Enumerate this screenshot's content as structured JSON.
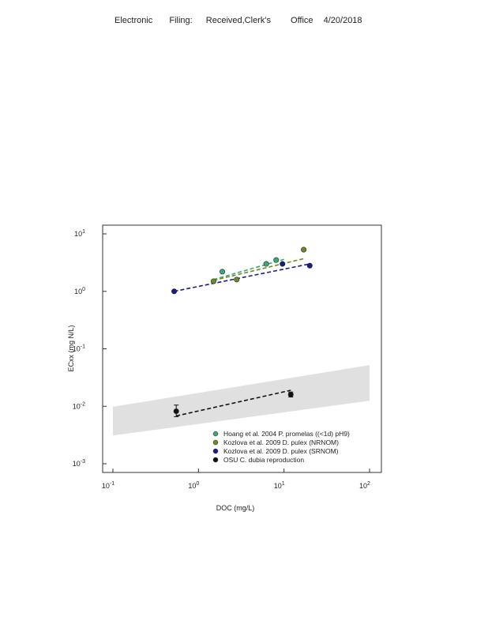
{
  "header": {
    "words": [
      "Electronic",
      "Filing:",
      "Received,Clerk's",
      "Office",
      "4/20/2018"
    ]
  },
  "chart_data": {
    "type": "scatter",
    "title": "",
    "xlabel": "DOC (mg/L)",
    "ylabel": "ECxx (mg N/L)",
    "x_scale": "log",
    "y_scale": "log",
    "xlim": [
      0.1,
      100
    ],
    "ylim": [
      0.001,
      10
    ],
    "x_ticks": [
      {
        "value": 0.1,
        "base": "10",
        "exp": "-1"
      },
      {
        "value": 1,
        "base": "10",
        "exp": "0"
      },
      {
        "value": 10,
        "base": "10",
        "exp": "1"
      },
      {
        "value": 100,
        "base": "10",
        "exp": "2"
      }
    ],
    "y_ticks": [
      {
        "value": 0.001,
        "base": "10",
        "exp": "-3"
      },
      {
        "value": 0.01,
        "base": "10",
        "exp": "-2"
      },
      {
        "value": 0.1,
        "base": "10",
        "exp": "-1"
      },
      {
        "value": 1,
        "base": "10",
        "exp": "0"
      },
      {
        "value": 10,
        "base": "10",
        "exp": "1"
      }
    ],
    "grid": false,
    "legend_position": "bottom-right",
    "band": {
      "color": "#e0e0e0",
      "upper": [
        [
          0.1,
          0.0098
        ],
        [
          100,
          0.052
        ]
      ],
      "lower": [
        [
          0.1,
          0.0031
        ],
        [
          100,
          0.0125
        ]
      ]
    },
    "series": [
      {
        "name": "Hoang et al. 2004 P. promelas ((<1d) pH9)",
        "color": "#3aa878",
        "points": [
          [
            1.9,
            2.2
          ],
          [
            6.2,
            3.0
          ],
          [
            8.1,
            3.5
          ]
        ],
        "fit": [
          [
            1.5,
            1.6
          ],
          [
            10,
            3.6
          ]
        ]
      },
      {
        "name": "Kozlova et al. 2009 D. pulex (NRNOM)",
        "color": "#6b8c22",
        "points": [
          [
            1.5,
            1.5
          ],
          [
            2.8,
            1.6
          ],
          [
            17,
            5.3
          ]
        ],
        "fit": [
          [
            1.5,
            1.55
          ],
          [
            17,
            3.7
          ]
        ]
      },
      {
        "name": "Kozlova et al. 2009 D. pulex (SRNOM)",
        "color": "#1a1a8c",
        "points": [
          [
            0.52,
            1.0
          ],
          [
            9.6,
            3.0
          ],
          [
            20,
            2.8
          ]
        ],
        "fit": [
          [
            0.52,
            1.0
          ],
          [
            20,
            3.0
          ]
        ]
      },
      {
        "name": "OSU C. dubia reproduction",
        "color": "#111111",
        "points": [
          [
            0.55,
            0.0082
          ],
          [
            12,
            0.016
          ]
        ],
        "error_bars": [
          [
            0.0066,
            0.0105
          ],
          [
            0.0145,
            0.0177
          ]
        ],
        "fit": [
          [
            0.55,
            0.0068
          ],
          [
            12,
            0.019
          ]
        ]
      }
    ]
  }
}
